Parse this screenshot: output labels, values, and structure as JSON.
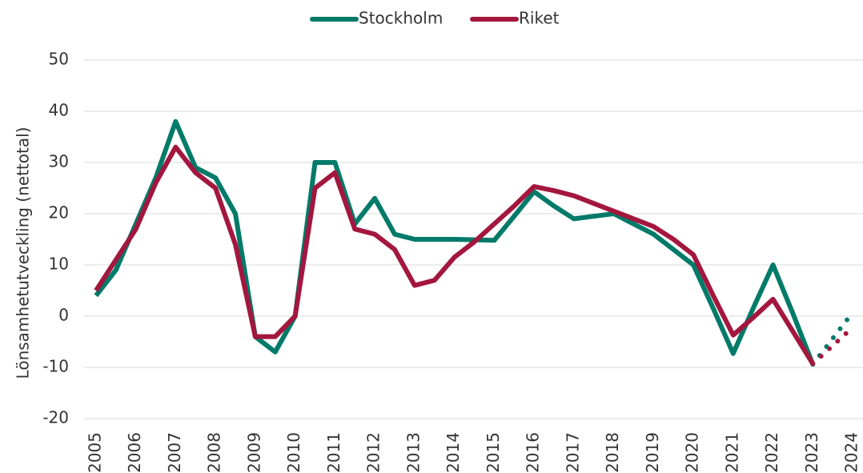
{
  "chart_data": {
    "type": "line",
    "ylabel": "Lönsamhetutveckling (nettotal)",
    "x": [
      2005,
      2005.5,
      2006,
      2006.5,
      2007,
      2007.5,
      2008,
      2008.5,
      2009,
      2009.5,
      2010,
      2010.5,
      2011,
      2011.5,
      2012,
      2012.5,
      2013,
      2013.5,
      2014,
      2014.5,
      2015,
      2015.5,
      2016,
      2016.5,
      2017,
      2017.5,
      2018,
      2018.5,
      2019,
      2019.5,
      2020,
      2020.5,
      2021,
      2021.5,
      2022,
      2022.5,
      2023
    ],
    "forecast_x": [
      2023,
      2024
    ],
    "series": [
      {
        "name": "Stockholm",
        "color": "#007a69",
        "values": [
          4,
          9,
          18,
          27,
          38,
          29,
          27,
          20,
          -4,
          -7,
          0,
          30,
          30,
          18,
          23,
          16,
          15,
          15,
          15,
          14.9,
          14.8,
          19.5,
          24.3,
          21.5,
          19,
          19.5,
          20,
          18,
          16,
          13,
          10,
          1.5,
          -7.3,
          1.5,
          10,
          0.5,
          -9.4
        ],
        "forecast_values": [
          -9.4,
          0.7
        ]
      },
      {
        "name": "Riket",
        "color": "#a3173e",
        "values": [
          5,
          11,
          17,
          26,
          33,
          28,
          25,
          14,
          -4,
          -4,
          0,
          25,
          28,
          17,
          16,
          13,
          6,
          7,
          11.5,
          14.5,
          18,
          21.5,
          25.3,
          24.5,
          23.5,
          22,
          20.5,
          19,
          17.5,
          15,
          12,
          4,
          -3.7,
          -0.3,
          3.3,
          -3,
          -9.3
        ],
        "forecast_values": [
          -9.3,
          -2.2
        ]
      }
    ],
    "xlim": [
      2004.7,
      2024.26
    ],
    "xticks": [
      2005,
      2006,
      2007,
      2008,
      2009,
      2010,
      2011,
      2012,
      2013,
      2014,
      2015,
      2016,
      2017,
      2018,
      2019,
      2020,
      2021,
      2022,
      2023,
      2024
    ],
    "ylim": [
      -20,
      50
    ],
    "yticks": [
      -20,
      -10,
      0,
      10,
      20,
      30,
      40,
      50
    ],
    "grid": true,
    "legend": "top"
  }
}
